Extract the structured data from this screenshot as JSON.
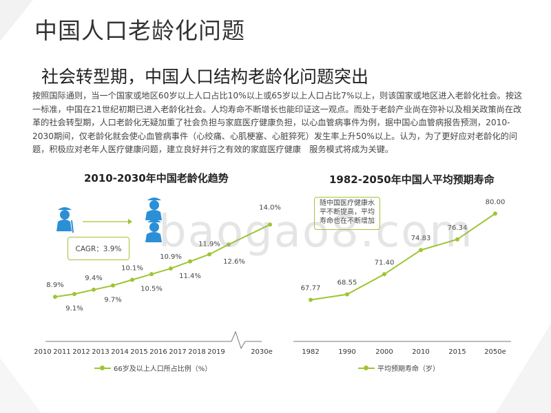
{
  "page": {
    "title": "中国人口老龄化问题",
    "subtitle": "社会转型期，中国人口结构老龄化问题突出",
    "paragraph": "按照国际通则，当一个国家或地区60岁以上人口占比10%以上或65岁以上人口占比7%以上，则该国家或地区进入老龄化社会。按这一标准，中国在21世纪初期已进入老龄化社会。人均寿命不断增长也能印证这一观点。而处于老龄产业尚在弥补以及相关政策尚在改革的社会转型期，人口老龄化无疑加重了社会负担与家庭医疗健康负担，以心血管病事件为例，据中国心血管病报告预测，2010-2030期间，仅老龄化就会使心血管病事件（心绞痛、心肌梗塞、心脏猝死）发生率上升50%以上。认为，为了更好应对老龄化的问题，积极应对老年人医疗健康问题，建立良好并行之有效的家庭医疗健康　服务模式将成为关键。",
    "watermark": "baogao8.com"
  },
  "colors": {
    "accent": "#9dc532",
    "axis": "#666666",
    "box_border": "#9dc532",
    "icon_blue": "#2b8fd6"
  },
  "chart_data": [
    {
      "type": "line",
      "title": "2010-2030年中国老龄化趋势",
      "categories": [
        "2010",
        "2011",
        "2012",
        "2013",
        "2014",
        "2015",
        "2016",
        "2017",
        "2018",
        "2019",
        "2030e"
      ],
      "values": [
        8.9,
        9.1,
        9.4,
        9.7,
        10.1,
        10.5,
        10.9,
        11.4,
        11.9,
        12.6,
        14.0
      ],
      "value_labels": [
        "8.9%",
        "9.1%",
        "9.4%",
        "9.7%",
        "10.1%",
        "10.5%",
        "10.9%",
        "11.4%",
        "11.9%",
        "12.6%",
        "14.0%"
      ],
      "series_name": "66岁及以上人口所占比例（%）",
      "annotation": "CAGR：3.9%",
      "axis_break": true,
      "ylim": [
        7.5,
        14.5
      ]
    },
    {
      "type": "line",
      "title": "1982-2050年中国人平均预期寿命",
      "categories": [
        "1982",
        "1990",
        "2000",
        "2010",
        "2015",
        "2050e"
      ],
      "values": [
        67.77,
        68.55,
        71.4,
        74.83,
        76.34,
        80.0
      ],
      "value_labels": [
        "67.77",
        "68.55",
        "71.40",
        "74.83",
        "76.34",
        "80.00"
      ],
      "series_name": "平均预期寿命（岁）",
      "annotation": "随中国医疗健康水平不断提高，平均寿命也在不断增加",
      "ylim": [
        65,
        81
      ]
    }
  ]
}
